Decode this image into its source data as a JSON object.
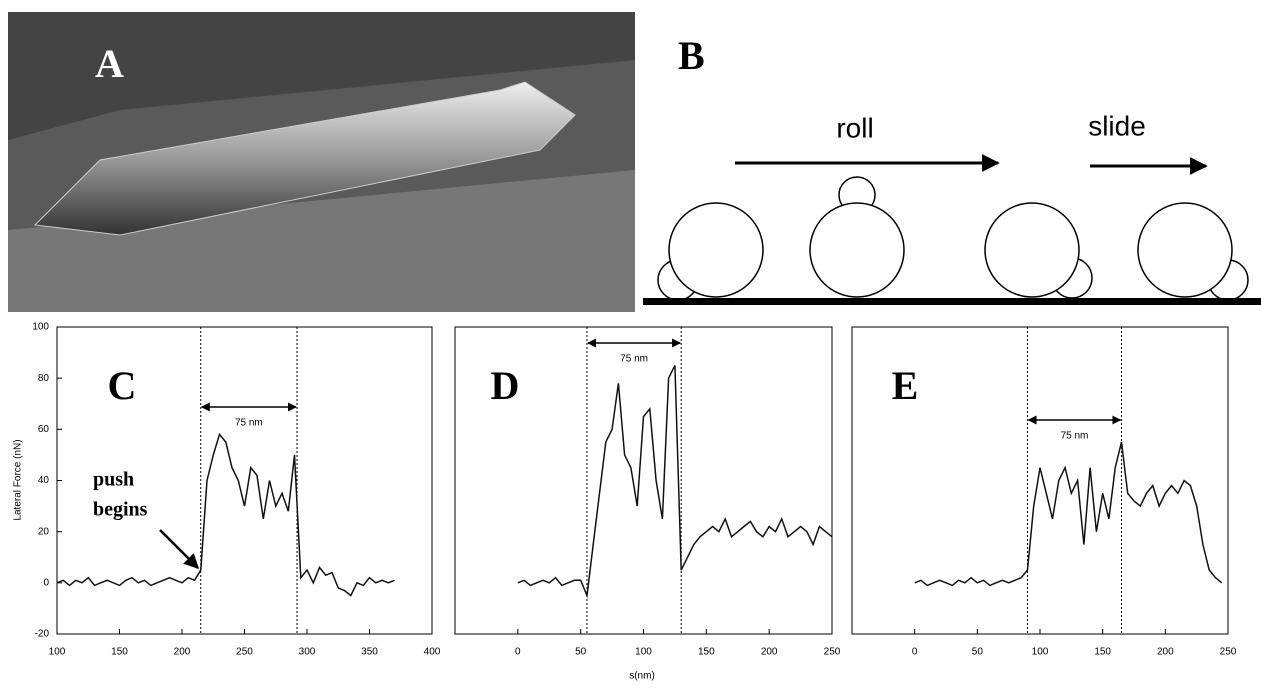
{
  "panel_a": {
    "label": "A"
  },
  "panel_b": {
    "label": "B",
    "roll": "roll",
    "slide": "slide"
  },
  "chart_data": [
    {
      "type": "line",
      "panel_label": "C",
      "y_label": "Lateral Force (nN)",
      "x": [
        100,
        105,
        110,
        115,
        120,
        125,
        130,
        135,
        140,
        145,
        150,
        155,
        160,
        165,
        170,
        175,
        180,
        185,
        190,
        195,
        200,
        205,
        210,
        215,
        220,
        225,
        230,
        235,
        240,
        245,
        250,
        255,
        260,
        265,
        270,
        275,
        280,
        285,
        290,
        295,
        300,
        305,
        310,
        315,
        320,
        325,
        330,
        335,
        340,
        345,
        350,
        355,
        360,
        365,
        370
      ],
      "values": [
        0,
        1,
        -1,
        1,
        0,
        2,
        -1,
        0,
        1,
        0,
        -1,
        1,
        2,
        0,
        1,
        -1,
        0,
        1,
        2,
        1,
        0,
        2,
        1,
        5,
        40,
        50,
        58,
        55,
        45,
        40,
        30,
        45,
        42,
        25,
        40,
        30,
        35,
        28,
        50,
        2,
        5,
        0,
        6,
        3,
        4,
        -2,
        -3,
        -5,
        0,
        -1,
        2,
        0,
        1,
        0,
        1
      ],
      "markers": [
        215,
        292
      ],
      "span_label": "75 nm",
      "annotation": [
        "push",
        "begins"
      ],
      "xlim": [
        100,
        400
      ],
      "xticks": [
        100,
        150,
        200,
        250,
        300,
        350,
        400
      ],
      "ylim": [
        -20,
        100
      ],
      "yticks": [
        -20,
        0,
        20,
        40,
        60,
        80,
        100
      ],
      "color": "#111111"
    },
    {
      "type": "line",
      "panel_label": "D",
      "x_label": "s(nm)",
      "x": [
        0,
        5,
        10,
        15,
        20,
        25,
        30,
        35,
        40,
        45,
        50,
        55,
        60,
        65,
        70,
        75,
        80,
        85,
        90,
        95,
        100,
        105,
        110,
        115,
        120,
        125,
        130,
        135,
        140,
        145,
        150,
        155,
        160,
        165,
        170,
        175,
        180,
        185,
        190,
        195,
        200,
        205,
        210,
        215,
        220,
        225,
        230,
        235,
        240,
        245,
        250
      ],
      "values": [
        0,
        1,
        -1,
        0,
        1,
        0,
        2,
        -1,
        0,
        1,
        1,
        -5,
        15,
        35,
        55,
        60,
        78,
        50,
        45,
        30,
        65,
        68,
        40,
        25,
        80,
        85,
        5,
        10,
        15,
        18,
        20,
        22,
        20,
        25,
        18,
        20,
        22,
        24,
        20,
        18,
        22,
        20,
        25,
        18,
        20,
        22,
        20,
        15,
        22,
        20,
        18
      ],
      "markers": [
        55,
        130
      ],
      "span_label": "75 nm",
      "xlim": [
        -50,
        250
      ],
      "xticks": [
        0,
        50,
        100,
        150,
        200,
        250
      ],
      "ylim": [
        -20,
        100
      ],
      "color": "#111111"
    },
    {
      "type": "line",
      "panel_label": "E",
      "x": [
        0,
        5,
        10,
        15,
        20,
        25,
        30,
        35,
        40,
        45,
        50,
        55,
        60,
        65,
        70,
        75,
        80,
        85,
        90,
        95,
        100,
        105,
        110,
        115,
        120,
        125,
        130,
        135,
        140,
        145,
        150,
        155,
        160,
        165,
        170,
        175,
        180,
        185,
        190,
        195,
        200,
        205,
        210,
        215,
        220,
        225,
        230,
        235,
        240,
        245
      ],
      "values": [
        0,
        1,
        -1,
        0,
        1,
        0,
        -1,
        1,
        0,
        2,
        0,
        1,
        -1,
        0,
        1,
        0,
        1,
        2,
        5,
        30,
        45,
        35,
        25,
        40,
        45,
        35,
        40,
        15,
        45,
        20,
        35,
        25,
        45,
        55,
        35,
        32,
        30,
        35,
        38,
        30,
        35,
        38,
        35,
        40,
        38,
        30,
        15,
        5,
        2,
        0
      ],
      "markers": [
        90,
        165
      ],
      "span_label": "75 nm",
      "xlim": [
        -50,
        250
      ],
      "xticks": [
        0,
        50,
        100,
        150,
        200,
        250
      ],
      "ylim": [
        -20,
        100
      ],
      "color": "#111111"
    }
  ]
}
